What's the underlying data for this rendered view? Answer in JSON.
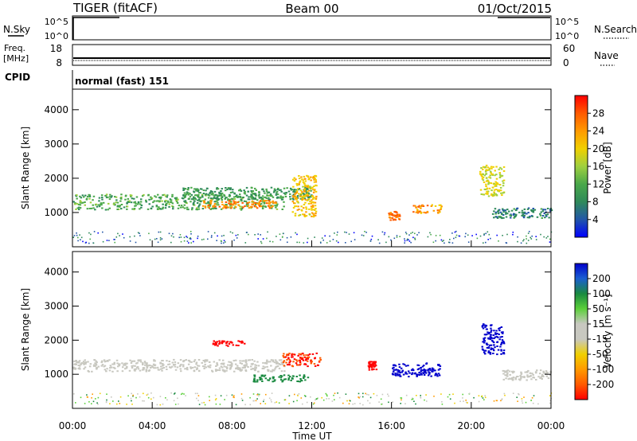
{
  "header": {
    "title": "TIGER (fitACF)",
    "beam": "Beam 00",
    "date": "01/Oct/2015"
  },
  "top_panels": {
    "nsky_label": "N.Sky",
    "nsearch_label": "N.Search",
    "nsky_ticks": [
      "10^5",
      "10^0"
    ],
    "nsearch_ticks": [
      "10^5",
      "10^0"
    ],
    "freq_label_1": "Freq.",
    "freq_label_2": "[MHz]",
    "freq_ticks": [
      "18",
      "8"
    ],
    "nave_label": "Nave",
    "nave_ticks": [
      "60",
      "0"
    ],
    "cpid_label": "CPID",
    "cpid_text": "normal (fast) 151"
  },
  "chart_data": [
    {
      "type": "heatmap",
      "name": "power",
      "ylabel": "Slant Range [km]",
      "ylim": [
        0,
        4600
      ],
      "yticks": [
        "1000",
        "2000",
        "3000",
        "4000"
      ],
      "colorbar_label": "Power [dB]",
      "colorbar_ticks": [
        "4",
        "8",
        "12",
        "16",
        "20",
        "24",
        "28"
      ],
      "colorbar_colors": [
        "#0000ff",
        "#2256a8",
        "#2f8a5a",
        "#4aa84a",
        "#9fd040",
        "#f0d000",
        "#ff9a00",
        "#ff5a00",
        "#ff0000"
      ],
      "features": [
        {
          "t0": 0.0,
          "t1": 10.6,
          "r0": 1100,
          "r1": 1550,
          "value": 14
        },
        {
          "t0": 6.5,
          "t1": 10.2,
          "r0": 1150,
          "r1": 1380,
          "value": 26
        },
        {
          "t0": 5.5,
          "t1": 12.0,
          "r0": 1400,
          "r1": 1750,
          "value": 12
        },
        {
          "t0": 11.0,
          "t1": 12.2,
          "r0": 900,
          "r1": 2100,
          "value": 22
        },
        {
          "t0": 15.8,
          "t1": 16.4,
          "r0": 800,
          "r1": 1050,
          "value": 27
        },
        {
          "t0": 17.0,
          "t1": 18.5,
          "r0": 1000,
          "r1": 1250,
          "value": 25
        },
        {
          "t0": 20.4,
          "t1": 21.6,
          "r0": 1500,
          "r1": 2400,
          "value": 20
        },
        {
          "t0": 21.0,
          "t1": 24.0,
          "r0": 850,
          "r1": 1150,
          "value": 10
        }
      ]
    },
    {
      "type": "heatmap",
      "name": "velocity",
      "ylabel": "Slant Range [km]",
      "ylim": [
        0,
        4600
      ],
      "yticks": [
        "1000",
        "2000",
        "3000",
        "4000"
      ],
      "colorbar_label": "Velocity [m s⁻¹]",
      "colorbar_ticks": [
        "200",
        "100",
        "50",
        "15",
        "-15",
        "-50",
        "-100",
        "-200"
      ],
      "colorbar_colors": [
        "#0000cc",
        "#1a5fd0",
        "#1a8a40",
        "#5bd03a",
        "#c8c8c0",
        "#c8c8c0",
        "#f0d000",
        "#ff9a00",
        "#ff5a00",
        "#ff0000"
      ],
      "features": [
        {
          "t0": 0.0,
          "t1": 10.6,
          "r0": 1100,
          "r1": 1450,
          "value": 0
        },
        {
          "t0": 7.0,
          "t1": 8.6,
          "r0": 1850,
          "r1": 2000,
          "value": -200
        },
        {
          "t0": 10.5,
          "t1": 12.4,
          "r0": 1250,
          "r1": 1650,
          "value": -150
        },
        {
          "t0": 9.0,
          "t1": 11.8,
          "r0": 800,
          "r1": 1000,
          "value": 40
        },
        {
          "t0": 14.8,
          "t1": 15.2,
          "r0": 1150,
          "r1": 1400,
          "value": -200
        },
        {
          "t0": 16.0,
          "t1": 18.4,
          "r0": 950,
          "r1": 1350,
          "value": 200
        },
        {
          "t0": 20.5,
          "t1": 21.6,
          "r0": 1600,
          "r1": 2500,
          "value": 180
        },
        {
          "t0": 21.5,
          "t1": 24.0,
          "r0": 850,
          "r1": 1150,
          "value": 0
        }
      ]
    }
  ],
  "x_axis": {
    "label": "Time UT",
    "ticks": [
      "00:00",
      "04:00",
      "08:00",
      "12:00",
      "16:00",
      "20:00",
      "00:00"
    ],
    "range_hours": [
      0,
      24
    ]
  }
}
